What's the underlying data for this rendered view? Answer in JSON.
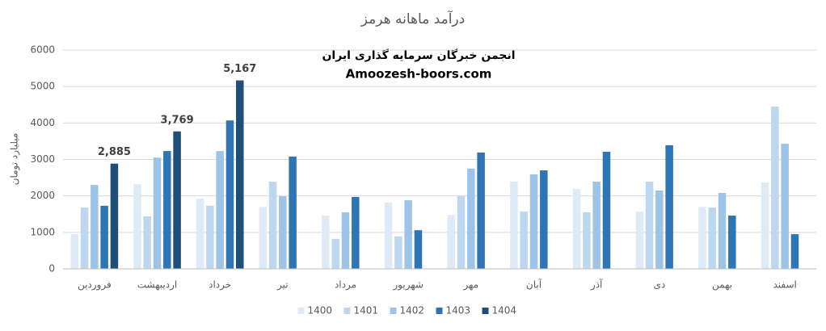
{
  "chart_data": {
    "type": "bar",
    "title": "درآمد ماهانه هرمز",
    "y_label": "میلیارد تومان",
    "annotations": [
      "انجمن خبرگان سرمایه گذاری ایران",
      "Amoozesh-boors.com"
    ],
    "categories": [
      "فروردین",
      "اردیبهشت",
      "خرداد",
      "تیر",
      "مرداد",
      "شهریور",
      "مهر",
      "آبان",
      "آذر",
      "دی",
      "بهمن",
      "اسفند"
    ],
    "series": [
      {
        "name": "1400",
        "color": "#deebf7",
        "values": [
          950,
          2320,
          1930,
          1700,
          1460,
          1820,
          1480,
          2390,
          2190,
          1570,
          1700,
          2370
        ]
      },
      {
        "name": "1401",
        "color": "#bdd7ee",
        "values": [
          1680,
          1440,
          1730,
          2390,
          820,
          890,
          1990,
          1570,
          1550,
          2390,
          1680,
          4450
        ]
      },
      {
        "name": "1402",
        "color": "#9dc3e6",
        "values": [
          2300,
          3050,
          3230,
          1990,
          1550,
          1880,
          2750,
          2590,
          2390,
          2150,
          2080,
          3430
        ]
      },
      {
        "name": "1403",
        "color": "#2e75b6",
        "values": [
          1730,
          3230,
          4070,
          3080,
          1970,
          1060,
          3190,
          2700,
          3210,
          3390,
          1460,
          950
        ]
      },
      {
        "name": "1404",
        "color": "#1f4e79",
        "values": [
          2885,
          3769,
          5167,
          null,
          null,
          null,
          null,
          null,
          null,
          null,
          null,
          null
        ],
        "value_labels": [
          "2,885",
          "3,769",
          "5,167",
          null,
          null,
          null,
          null,
          null,
          null,
          null,
          null,
          null
        ]
      }
    ],
    "ylim": [
      0,
      6000
    ],
    "yticks": [
      0,
      1000,
      2000,
      3000,
      4000,
      5000,
      6000
    ],
    "grid": true,
    "legend": "bottom"
  }
}
